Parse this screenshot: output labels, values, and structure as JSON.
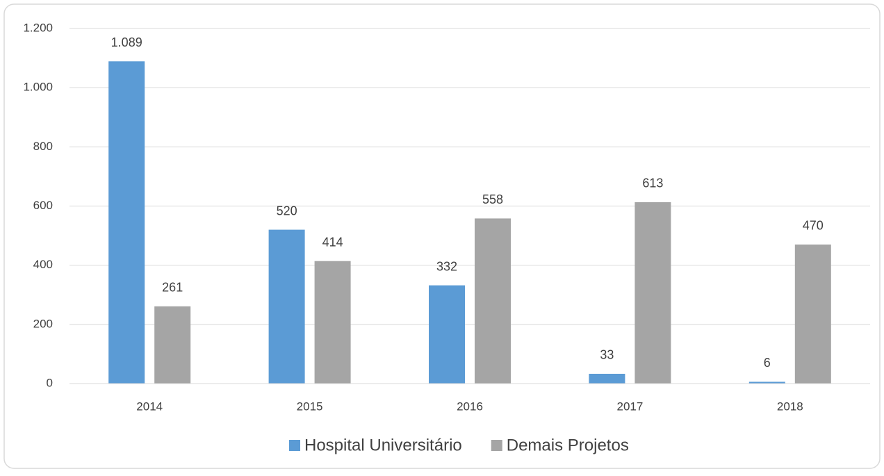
{
  "chart_data": {
    "type": "bar",
    "categories": [
      "2014",
      "2015",
      "2016",
      "2017",
      "2018"
    ],
    "series": [
      {
        "name": "Hospital Universitário",
        "color": "#5b9bd5",
        "values": [
          1089,
          520,
          332,
          33,
          6
        ],
        "value_labels": [
          "1.089",
          "520",
          "332",
          "33",
          "6"
        ]
      },
      {
        "name": "Demais Projetos",
        "color": "#a5a5a5",
        "values": [
          261,
          414,
          558,
          613,
          470
        ],
        "value_labels": [
          "261",
          "414",
          "558",
          "613",
          "470"
        ]
      }
    ],
    "ylim": [
      0,
      1200
    ],
    "yticks": [
      0,
      200,
      400,
      600,
      800,
      {
        "value": 1000,
        "label": "1.000"
      },
      {
        "value": 1200,
        "label": "1.200"
      }
    ],
    "grid": true,
    "legend": "bottom"
  }
}
